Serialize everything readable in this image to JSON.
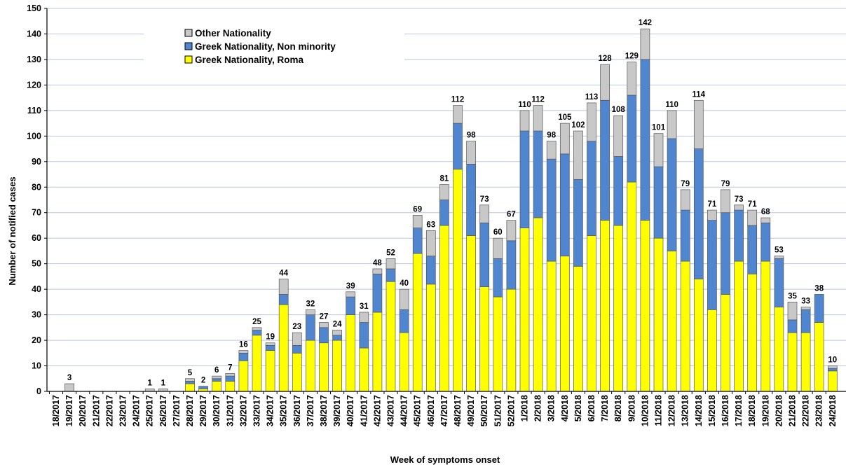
{
  "chart_data": {
    "type": "bar",
    "stacked": true,
    "xlabel": "Week of symptoms onset",
    "ylabel": "Number of notified cases",
    "ylim": [
      0,
      150
    ],
    "yticks": [
      0,
      10,
      20,
      30,
      40,
      50,
      60,
      70,
      80,
      90,
      100,
      110,
      120,
      130,
      140,
      150
    ],
    "grid": true,
    "legend_position": "top-left",
    "categories": [
      "18/2017",
      "19/2017",
      "20/2017",
      "21/2017",
      "22/2017",
      "23/2017",
      "24/2017",
      "25/2017",
      "26/2017",
      "27/2017",
      "28/2017",
      "29/2017",
      "30/2017",
      "31/2017",
      "32/2017",
      "33/2017",
      "34/2017",
      "35/2017",
      "36/2017",
      "37/2017",
      "38/2017",
      "39/2017",
      "40/2017",
      "41/2017",
      "42/2017",
      "43/2017",
      "44/2017",
      "45/2017",
      "46/2017",
      "47/2017",
      "48/2017",
      "49/2017",
      "50/2017",
      "51/2017",
      "52/2017",
      "1/2018",
      "2/2018",
      "3/2018",
      "4/2018",
      "5/2018",
      "6/2018",
      "7/2018",
      "8/2018",
      "9/2018",
      "10/2018",
      "11/2018",
      "12/2018",
      "13/2018",
      "14/2018",
      "15/2018",
      "16/2018",
      "17/2018",
      "18/2018",
      "19/2018",
      "20/2018",
      "21/2018",
      "22/2018",
      "23/2018",
      "24/2018"
    ],
    "series": [
      {
        "name": "Greek Nationality, Roma",
        "color": "#ffff00",
        "values": [
          0,
          0,
          0,
          0,
          0,
          0,
          0,
          0,
          0,
          0,
          3,
          1,
          4,
          4,
          12,
          22,
          16,
          34,
          15,
          20,
          19,
          20,
          30,
          17,
          31,
          43,
          23,
          54,
          42,
          65,
          87,
          61,
          41,
          37,
          40,
          64,
          68,
          51,
          53,
          49,
          61,
          67,
          65,
          82,
          67,
          60,
          55,
          51,
          44,
          32,
          38,
          51,
          46,
          51,
          33,
          23,
          23,
          27,
          8
        ]
      },
      {
        "name": "Greek Nationality, Non minority",
        "color": "#4f86cf",
        "values": [
          0,
          0,
          0,
          0,
          0,
          0,
          0,
          0,
          0,
          0,
          1,
          1,
          1,
          2,
          3,
          2,
          2,
          4,
          3,
          10,
          6,
          2,
          7,
          10,
          15,
          5,
          9,
          10,
          11,
          10,
          18,
          28,
          25,
          15,
          19,
          38,
          34,
          40,
          40,
          34,
          37,
          47,
          27,
          34,
          63,
          28,
          44,
          20,
          51,
          35,
          32,
          20,
          19,
          15,
          19,
          5,
          9,
          11,
          1
        ]
      },
      {
        "name": "Other Nationality",
        "color": "#c8c8c8",
        "values": [
          0,
          3,
          0,
          0,
          0,
          0,
          0,
          1,
          1,
          0,
          1,
          0,
          1,
          1,
          1,
          1,
          1,
          6,
          5,
          2,
          2,
          2,
          2,
          4,
          2,
          4,
          8,
          5,
          10,
          6,
          7,
          9,
          7,
          8,
          8,
          8,
          10,
          7,
          12,
          19,
          15,
          14,
          16,
          13,
          12,
          13,
          11,
          8,
          19,
          4,
          9,
          2,
          6,
          2,
          1,
          7,
          1,
          0,
          1
        ]
      }
    ],
    "totals": [
      null,
      3,
      null,
      null,
      null,
      null,
      null,
      1,
      1,
      null,
      5,
      2,
      6,
      7,
      16,
      25,
      19,
      44,
      23,
      32,
      27,
      24,
      39,
      31,
      48,
      52,
      40,
      69,
      63,
      81,
      112,
      98,
      73,
      60,
      67,
      110,
      112,
      98,
      105,
      102,
      113,
      128,
      108,
      129,
      142,
      101,
      110,
      79,
      114,
      71,
      79,
      73,
      71,
      68,
      53,
      35,
      33,
      38,
      10
    ],
    "legend": [
      "Other Nationality",
      "Greek Nationality, Non minority",
      "Greek Nationality, Roma"
    ]
  }
}
